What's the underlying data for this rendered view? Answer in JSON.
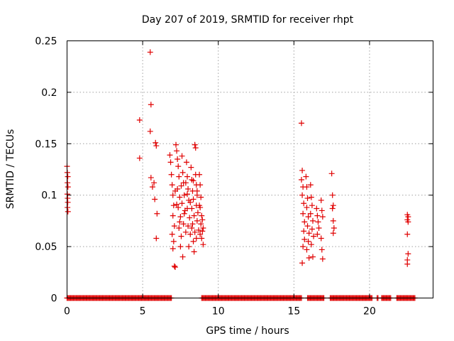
{
  "chart_data": {
    "type": "scatter",
    "title": "Day 207 of 2019, SRMTID for receiver rhpt",
    "xlabel": "GPS time / hours",
    "ylabel": "SRMTID / TECUs",
    "xlim": [
      0,
      24.2
    ],
    "ylim": [
      0,
      0.25
    ],
    "xticks": [
      0,
      5,
      10,
      15,
      20
    ],
    "yticks": [
      0,
      0.05,
      0.1,
      0.15,
      0.2,
      0.25
    ],
    "xtick_labels": [
      "0",
      "5",
      "10",
      "15",
      "20"
    ],
    "ytick_labels": [
      "0",
      "0.05",
      "0.1",
      "0.15",
      "0.2",
      "0.25"
    ],
    "grid": true,
    "marker": "plus",
    "color": "#e00000",
    "series": [
      {
        "points": [
          [
            0.0,
            0.128
          ],
          [
            0.02,
            0.122
          ],
          [
            0.05,
            0.118
          ],
          [
            0.03,
            0.112
          ],
          [
            0.06,
            0.108
          ],
          [
            0.02,
            0.101
          ],
          [
            0.04,
            0.097
          ],
          [
            0.05,
            0.093
          ],
          [
            0.03,
            0.088
          ],
          [
            0.06,
            0.084
          ],
          [
            4.8,
            0.173
          ],
          [
            4.8,
            0.136
          ],
          [
            5.5,
            0.239
          ],
          [
            5.55,
            0.188
          ],
          [
            5.5,
            0.162
          ],
          [
            5.55,
            0.117
          ],
          [
            5.65,
            0.108
          ],
          [
            5.75,
            0.112
          ],
          [
            5.8,
            0.096
          ],
          [
            5.85,
            0.151
          ],
          [
            5.9,
            0.148
          ],
          [
            5.95,
            0.082
          ],
          [
            5.9,
            0.058
          ],
          [
            6.8,
            0.139
          ],
          [
            6.85,
            0.132
          ],
          [
            6.9,
            0.12
          ],
          [
            6.95,
            0.11
          ],
          [
            7.0,
            0.1
          ],
          [
            7.05,
            0.09
          ],
          [
            7.0,
            0.08
          ],
          [
            7.1,
            0.07
          ],
          [
            6.95,
            0.062
          ],
          [
            7.05,
            0.055
          ],
          [
            7.0,
            0.048
          ],
          [
            7.1,
            0.031
          ],
          [
            7.15,
            0.03
          ],
          [
            7.2,
            0.149
          ],
          [
            7.25,
            0.143
          ],
          [
            7.3,
            0.135
          ],
          [
            7.35,
            0.128
          ],
          [
            7.4,
            0.118
          ],
          [
            7.3,
            0.106
          ],
          [
            7.45,
            0.098
          ],
          [
            7.35,
            0.088
          ],
          [
            7.5,
            0.079
          ],
          [
            7.4,
            0.068
          ],
          [
            7.55,
            0.06
          ],
          [
            7.5,
            0.05
          ],
          [
            7.6,
            0.138
          ],
          [
            7.65,
            0.122
          ],
          [
            7.7,
            0.112
          ],
          [
            7.75,
            0.1
          ],
          [
            7.6,
            0.092
          ],
          [
            7.8,
            0.085
          ],
          [
            7.7,
            0.072
          ],
          [
            7.85,
            0.064
          ],
          [
            7.65,
            0.04
          ],
          [
            7.9,
            0.132
          ],
          [
            7.95,
            0.118
          ],
          [
            8.0,
            0.106
          ],
          [
            8.05,
            0.095
          ],
          [
            7.95,
            0.087
          ],
          [
            8.1,
            0.078
          ],
          [
            8.0,
            0.07
          ],
          [
            8.15,
            0.062
          ],
          [
            8.05,
            0.05
          ],
          [
            8.2,
            0.127
          ],
          [
            8.25,
            0.115
          ],
          [
            8.3,
            0.104
          ],
          [
            8.35,
            0.096
          ],
          [
            8.25,
            0.087
          ],
          [
            8.4,
            0.08
          ],
          [
            8.3,
            0.072
          ],
          [
            8.45,
            0.064
          ],
          [
            8.35,
            0.055
          ],
          [
            8.4,
            0.045
          ],
          [
            8.45,
            0.149
          ],
          [
            8.5,
            0.146
          ],
          [
            8.5,
            0.12
          ],
          [
            8.55,
            0.11
          ],
          [
            8.6,
            0.1
          ],
          [
            8.55,
            0.09
          ],
          [
            8.65,
            0.083
          ],
          [
            8.6,
            0.075
          ],
          [
            8.7,
            0.066
          ],
          [
            8.55,
            0.058
          ],
          [
            8.75,
            0.12
          ],
          [
            8.8,
            0.11
          ],
          [
            8.85,
            0.098
          ],
          [
            8.8,
            0.088
          ],
          [
            8.9,
            0.08
          ],
          [
            8.85,
            0.072
          ],
          [
            8.95,
            0.065
          ],
          [
            8.9,
            0.058
          ],
          [
            9.0,
            0.052
          ],
          [
            8.95,
            0.076
          ],
          [
            9.0,
            0.068
          ],
          [
            8.8,
            0.062
          ],
          [
            7.25,
            0.091
          ],
          [
            7.55,
            0.109
          ],
          [
            7.75,
            0.082
          ],
          [
            7.95,
            0.101
          ],
          [
            8.15,
            0.093
          ],
          [
            8.35,
            0.114
          ],
          [
            8.6,
            0.104
          ],
          [
            8.75,
            0.09
          ],
          [
            7.45,
            0.074
          ],
          [
            7.85,
            0.112
          ],
          [
            8.25,
            0.068
          ],
          [
            7.15,
            0.104
          ],
          [
            15.5,
            0.17
          ],
          [
            15.55,
            0.124
          ],
          [
            15.5,
            0.115
          ],
          [
            15.6,
            0.108
          ],
          [
            15.55,
            0.1
          ],
          [
            15.65,
            0.092
          ],
          [
            15.6,
            0.082
          ],
          [
            15.7,
            0.074
          ],
          [
            15.65,
            0.065
          ],
          [
            15.7,
            0.057
          ],
          [
            15.6,
            0.05
          ],
          [
            15.55,
            0.034
          ],
          [
            15.8,
            0.118
          ],
          [
            15.85,
            0.108
          ],
          [
            15.9,
            0.097
          ],
          [
            15.85,
            0.088
          ],
          [
            15.95,
            0.079
          ],
          [
            15.9,
            0.07
          ],
          [
            16.0,
            0.063
          ],
          [
            15.95,
            0.055
          ],
          [
            15.85,
            0.047
          ],
          [
            16.0,
            0.039
          ],
          [
            16.1,
            0.11
          ],
          [
            16.15,
            0.098
          ],
          [
            16.2,
            0.09
          ],
          [
            16.1,
            0.082
          ],
          [
            16.25,
            0.075
          ],
          [
            16.2,
            0.067
          ],
          [
            16.3,
            0.06
          ],
          [
            16.15,
            0.052
          ],
          [
            16.25,
            0.04
          ],
          [
            16.5,
            0.087
          ],
          [
            16.55,
            0.08
          ],
          [
            16.6,
            0.074
          ],
          [
            16.65,
            0.068
          ],
          [
            16.55,
            0.062
          ],
          [
            16.8,
            0.095
          ],
          [
            16.85,
            0.085
          ],
          [
            16.9,
            0.079
          ],
          [
            16.8,
            0.058
          ],
          [
            16.85,
            0.047
          ],
          [
            16.9,
            0.038
          ],
          [
            17.5,
            0.121
          ],
          [
            17.55,
            0.1
          ],
          [
            17.6,
            0.09
          ],
          [
            17.55,
            0.087
          ],
          [
            17.6,
            0.075
          ],
          [
            17.65,
            0.068
          ],
          [
            17.6,
            0.063
          ],
          [
            22.5,
            0.081
          ],
          [
            22.55,
            0.079
          ],
          [
            22.5,
            0.076
          ],
          [
            22.55,
            0.074
          ],
          [
            22.5,
            0.062
          ],
          [
            22.55,
            0.043
          ],
          [
            22.5,
            0.037
          ],
          [
            22.5,
            0.033
          ]
        ],
        "zero_bands": [
          [
            0.0,
            6.9
          ],
          [
            8.9,
            15.5
          ],
          [
            15.9,
            17.0
          ],
          [
            17.4,
            20.2
          ],
          [
            20.5,
            20.6
          ],
          [
            20.8,
            21.4
          ],
          [
            21.8,
            23.0
          ]
        ]
      }
    ]
  }
}
